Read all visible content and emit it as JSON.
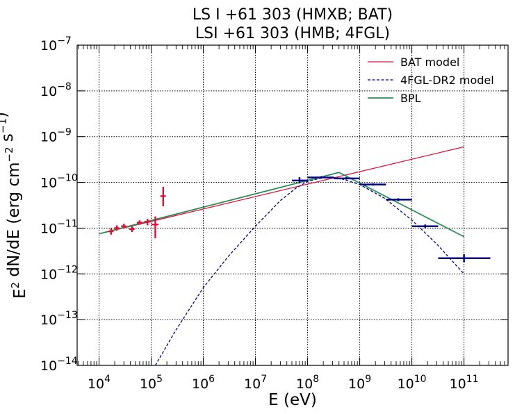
{
  "chart_data": {
    "type": "scatter",
    "title_lines": [
      "LS I +61 303 (HMXB; BAT)",
      "LSI +61 303 (HMB; 4FGL)"
    ],
    "xlabel": "E (eV)",
    "ylabel": "E² dN/dE (erg cm⁻² s⁻¹)",
    "x_scale": "log",
    "y_scale": "log",
    "xlim": [
      3800,
      700000000000
    ],
    "ylim": [
      1e-14,
      1e-07
    ],
    "x_ticks": [
      {
        "value": 10000,
        "base": "10",
        "exp": "4"
      },
      {
        "value": 100000,
        "base": "10",
        "exp": "5"
      },
      {
        "value": 1000000,
        "base": "10",
        "exp": "6"
      },
      {
        "value": 10000000,
        "base": "10",
        "exp": "7"
      },
      {
        "value": 100000000,
        "base": "10",
        "exp": "8"
      },
      {
        "value": 1000000000,
        "base": "10",
        "exp": "9"
      },
      {
        "value": 10000000000,
        "base": "10",
        "exp": "10"
      },
      {
        "value": 100000000000,
        "base": "10",
        "exp": "11"
      }
    ],
    "y_ticks": [
      {
        "value": 1e-14,
        "base": "10",
        "exp": "−14"
      },
      {
        "value": 1e-13,
        "base": "10",
        "exp": "−13"
      },
      {
        "value": 1e-12,
        "base": "10",
        "exp": "−12"
      },
      {
        "value": 1e-11,
        "base": "10",
        "exp": "−11"
      },
      {
        "value": 1e-10,
        "base": "10",
        "exp": "−10"
      },
      {
        "value": 1e-09,
        "base": "10",
        "exp": "−9"
      },
      {
        "value": 1e-08,
        "base": "10",
        "exp": "−8"
      },
      {
        "value": 1e-07,
        "base": "10",
        "exp": "−7"
      }
    ],
    "grid": true,
    "legend_position": "top-right",
    "series": [
      {
        "name": "BAT model",
        "kind": "line",
        "color": "#dc143c",
        "dash": "solid",
        "x": [
          10000,
          100000000000
        ],
        "y": [
          7.5e-12,
          6e-10
        ]
      },
      {
        "name": "4FGL-DR2 model",
        "kind": "line",
        "color": "#000080",
        "dash": "dashed",
        "x": [
          120000,
          300000,
          1000000,
          3000000,
          10000000,
          30000000,
          60000000,
          100000000,
          200000000,
          400000000,
          1000000000,
          3000000000,
          10000000000,
          30000000000,
          100000000000
        ],
        "y": [
          1e-14,
          6e-14,
          5e-13,
          2.4e-12,
          1.1e-11,
          4e-11,
          7.5e-11,
          1.05e-10,
          1.28e-10,
          1.25e-10,
          9e-11,
          4.5e-11,
          1.5e-11,
          4.5e-12,
          1e-12
        ]
      },
      {
        "name": "BPL",
        "kind": "line",
        "color": "#2e8b57",
        "dash": "solid",
        "x": [
          10000,
          400000000,
          100000000000
        ],
        "y": [
          7.5e-12,
          1.65e-10,
          6.5e-12
        ]
      },
      {
        "name": "",
        "kind": "errorbar",
        "color": "#dc143c",
        "points": [
          {
            "x": 17000,
            "y": 8.5e-12,
            "xlo": 15000,
            "xhi": 19000,
            "ylo": 7.2e-12,
            "yhi": 1e-11
          },
          {
            "x": 22000,
            "y": 1e-11,
            "xlo": 19500,
            "xhi": 24500,
            "ylo": 8.8e-12,
            "yhi": 1.15e-11
          },
          {
            "x": 30000,
            "y": 1.1e-11,
            "xlo": 26500,
            "xhi": 33500,
            "ylo": 9.8e-12,
            "yhi": 1.25e-11
          },
          {
            "x": 43000,
            "y": 9.5e-12,
            "xlo": 38000,
            "xhi": 48000,
            "ylo": 8.2e-12,
            "yhi": 1.1e-11
          },
          {
            "x": 60000,
            "y": 1.32e-11,
            "xlo": 53000,
            "xhi": 68000,
            "ylo": 1.18e-11,
            "yhi": 1.48e-11
          },
          {
            "x": 85000,
            "y": 1.38e-11,
            "xlo": 74000,
            "xhi": 97000,
            "ylo": 1.15e-11,
            "yhi": 1.6e-11
          },
          {
            "x": 120000,
            "y": 1.2e-11,
            "xlo": 102000,
            "xhi": 138000,
            "ylo": 6e-12,
            "yhi": 1.8e-11
          },
          {
            "x": 170000,
            "y": 5e-11,
            "xlo": 150000,
            "xhi": 190000,
            "ylo": 3e-11,
            "yhi": 8e-11
          }
        ]
      },
      {
        "name": "",
        "kind": "errorbar",
        "color": "#000080",
        "points": [
          {
            "x": 70000000,
            "y": 1.1e-10,
            "xlo": 50000000,
            "xhi": 100000000,
            "ylo": 9.5e-11,
            "yhi": 1.3e-10
          },
          {
            "x": 180000000,
            "y": 1.28e-10,
            "xlo": 100000000,
            "xhi": 320000000,
            "ylo": 1.2e-10,
            "yhi": 1.36e-10
          },
          {
            "x": 550000000,
            "y": 1.22e-10,
            "xlo": 320000000,
            "xhi": 1000000000,
            "ylo": 1.15e-10,
            "yhi": 1.3e-10
          },
          {
            "x": 1800000000,
            "y": 9e-11,
            "xlo": 1000000000,
            "xhi": 3200000000,
            "ylo": 8.5e-11,
            "yhi": 9.5e-11
          },
          {
            "x": 5500000000,
            "y": 4.2e-11,
            "xlo": 3200000000,
            "xhi": 10000000000,
            "ylo": 3.9e-11,
            "yhi": 4.5e-11
          },
          {
            "x": 18000000000,
            "y": 1.1e-11,
            "xlo": 10000000000,
            "xhi": 32000000000,
            "ylo": 1e-11,
            "yhi": 1.2e-11
          },
          {
            "x": 100000000000,
            "y": 2.2e-12,
            "xlo": 32000000000,
            "xhi": 320000000000,
            "ylo": 1.8e-12,
            "yhi": 2.7e-12
          }
        ]
      }
    ]
  }
}
